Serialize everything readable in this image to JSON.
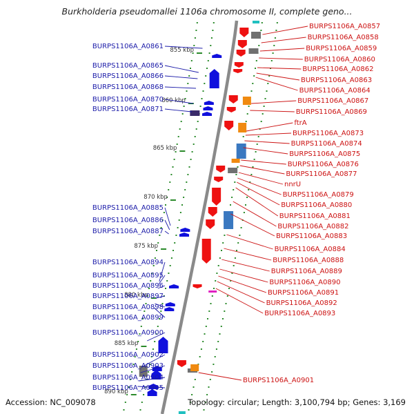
{
  "title": "Burkholderia pseudomallei 1106a chromosome II, complete geno...",
  "accession": "Accession: NC_009078",
  "topology": "Topology: circular; Length: 3,100,794 bp; Genes: 3,169",
  "ticks": [
    "855 kbp",
    "860 kbp",
    "865 kbp",
    "870 kbp",
    "875 kbp",
    "880 kbp",
    "885 kbp",
    "890 kbp"
  ],
  "left_labels": [
    "BURPS1106A_A0861",
    "BURPS1106A_A0865",
    "BURPS1106A_A0866",
    "BURPS1106A_A0868",
    "BURPS1106A_A0870",
    "BURPS1106A_A0871",
    "BURPS1106A_A0885",
    "BURPS1106A_A0886",
    "BURPS1106A_A0887",
    "BURPS1106A_A0894",
    "BURPS1106A_A0895",
    "BURPS1106A_A0896",
    "BURPS1106A_A0897",
    "BURPS1106A_A0898",
    "BURPS1106A_A0899",
    "BURPS1106A_A0900",
    "BURPS1106A_A0902",
    "BURPS1106A_A0903",
    "BURPS1106A_A0904",
    "BURPS1106A_A0905"
  ],
  "right_labels": [
    "BURPS1106A_A0857",
    "BURPS1106A_A0858",
    "BURPS1106A_A0859",
    "BURPS1106A_A0860",
    "BURPS1106A_A0862",
    "BURPS1106A_A0863",
    "BURPS1106A_A0864",
    "BURPS1106A_A0867",
    "BURPS1106A_A0869",
    "ftrA",
    "BURPS1106A_A0873",
    "BURPS1106A_A0874",
    "BURPS1106A_A0875",
    "BURPS1106A_A0876",
    "BURPS1106A_A0877",
    "nnrU",
    "BURPS1106A_A0879",
    "BURPS1106A_A0880",
    "BURPS1106A_A0881",
    "BURPS1106A_A0882",
    "BURPS1106A_A0883",
    "BURPS1106A_A0884",
    "BURPS1106A_A0888",
    "BURPS1106A_A0889",
    "BURPS1106A_A0890",
    "BURPS1106A_A0891",
    "BURPS1106A_A0892",
    "BURPS1106A_A0893",
    "BURPS1106A_A0901"
  ],
  "colors": {
    "backbone": "#8a8a8a",
    "tick": "#2a8a2a",
    "reverse_gene": "#1010dd",
    "forward_gene": "#ee1111",
    "left_label": "#1a1aa8",
    "right_label": "#cc1111",
    "orange_feature": "#f08a10",
    "steel_feature": "#3a78c0",
    "gray_feature": "#707070"
  }
}
